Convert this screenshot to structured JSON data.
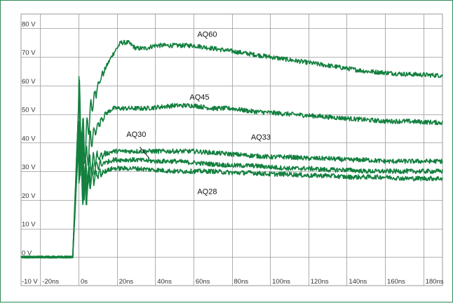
{
  "chart_data": {
    "type": "line",
    "title": "",
    "xlabel": "",
    "ylabel": "",
    "x_unit": "ns",
    "y_unit": "V",
    "xlim": [
      -30,
      190
    ],
    "ylim": [
      -10,
      85
    ],
    "grid": true,
    "colors": {
      "frame": "#2e8b57",
      "trace": "#13803f",
      "grid": "#9a9a9a"
    },
    "y_tick_values": [
      -10,
      0,
      10,
      20,
      30,
      40,
      50,
      60,
      70,
      80
    ],
    "y_tick_labels": [
      "-10 V",
      "0 V",
      "10 V",
      "20 V",
      "30 V",
      "40 V",
      "50 V",
      "60 V",
      "70 V",
      "80 V"
    ],
    "x_tick_values": [
      -20,
      0,
      20,
      40,
      60,
      80,
      100,
      120,
      140,
      160,
      180
    ],
    "x_tick_labels": [
      "-20ns",
      "0s",
      "20ns",
      "40ns",
      "60ns",
      "80ns",
      "100ns",
      "120ns",
      "140ns",
      "160ns",
      "180ns"
    ],
    "series": [
      {
        "name": "AQ60",
        "label_at": [
          62,
          77
        ],
        "points": [
          [
            -30,
            0
          ],
          [
            -3,
            0
          ],
          [
            0,
            52
          ],
          [
            3,
            38
          ],
          [
            6,
            50
          ],
          [
            10,
            60
          ],
          [
            14,
            66
          ],
          [
            18,
            71
          ],
          [
            22,
            75
          ],
          [
            26,
            75
          ],
          [
            30,
            73
          ],
          [
            35,
            73
          ],
          [
            40,
            74
          ],
          [
            50,
            74
          ],
          [
            60,
            74
          ],
          [
            70,
            73
          ],
          [
            80,
            72
          ],
          [
            90,
            71
          ],
          [
            100,
            70
          ],
          [
            110,
            69
          ],
          [
            120,
            68
          ],
          [
            130,
            67
          ],
          [
            140,
            66
          ],
          [
            150,
            65
          ],
          [
            160,
            64.5
          ],
          [
            170,
            64
          ],
          [
            190,
            63.5
          ]
        ]
      },
      {
        "name": "AQ45",
        "label_at": [
          58,
          55
        ],
        "points": [
          [
            -30,
            0
          ],
          [
            -3,
            0
          ],
          [
            0,
            52
          ],
          [
            3,
            30
          ],
          [
            6,
            40
          ],
          [
            10,
            46
          ],
          [
            14,
            50
          ],
          [
            18,
            52
          ],
          [
            25,
            52
          ],
          [
            35,
            52
          ],
          [
            50,
            53
          ],
          [
            60,
            53
          ],
          [
            70,
            52
          ],
          [
            80,
            52
          ],
          [
            90,
            51
          ],
          [
            100,
            50.5
          ],
          [
            110,
            50
          ],
          [
            120,
            49.5
          ],
          [
            130,
            49
          ],
          [
            140,
            48.5
          ],
          [
            150,
            48
          ],
          [
            160,
            47.5
          ],
          [
            170,
            47.5
          ],
          [
            190,
            47
          ]
        ]
      },
      {
        "name": "AQ33",
        "label_at": [
          90,
          41
        ],
        "points": [
          [
            -30,
            0
          ],
          [
            -3,
            0
          ],
          [
            0,
            45
          ],
          [
            3,
            26
          ],
          [
            6,
            32
          ],
          [
            10,
            35
          ],
          [
            14,
            36
          ],
          [
            18,
            37
          ],
          [
            30,
            37
          ],
          [
            40,
            37
          ],
          [
            50,
            37
          ],
          [
            60,
            37
          ],
          [
            70,
            36.5
          ],
          [
            80,
            36
          ],
          [
            90,
            35.5
          ],
          [
            100,
            35
          ],
          [
            110,
            35
          ],
          [
            120,
            34.5
          ],
          [
            130,
            34.5
          ],
          [
            140,
            34
          ],
          [
            150,
            34
          ],
          [
            160,
            33.5
          ],
          [
            170,
            33.5
          ],
          [
            190,
            33.5
          ]
        ]
      },
      {
        "name": "AQ30",
        "label_at": [
          25,
          42
        ],
        "points": [
          [
            -30,
            0
          ],
          [
            -3,
            0
          ],
          [
            0,
            42
          ],
          [
            3,
            24
          ],
          [
            6,
            29
          ],
          [
            10,
            32
          ],
          [
            14,
            33
          ],
          [
            18,
            34
          ],
          [
            30,
            34
          ],
          [
            40,
            33.5
          ],
          [
            50,
            33.5
          ],
          [
            60,
            33
          ],
          [
            70,
            32.5
          ],
          [
            80,
            32
          ],
          [
            90,
            32
          ],
          [
            100,
            31.5
          ],
          [
            110,
            31
          ],
          [
            120,
            31
          ],
          [
            130,
            30.5
          ],
          [
            140,
            30.5
          ],
          [
            150,
            30
          ],
          [
            160,
            30
          ],
          [
            170,
            30
          ],
          [
            190,
            30
          ]
        ]
      },
      {
        "name": "AQ28",
        "label_at": [
          62,
          22
        ],
        "points": [
          [
            -30,
            0
          ],
          [
            -3,
            0
          ],
          [
            0,
            40
          ],
          [
            3,
            22
          ],
          [
            6,
            27
          ],
          [
            10,
            29
          ],
          [
            14,
            30
          ],
          [
            18,
            31
          ],
          [
            30,
            31
          ],
          [
            40,
            30.5
          ],
          [
            50,
            30
          ],
          [
            60,
            30
          ],
          [
            70,
            30
          ],
          [
            80,
            29.5
          ],
          [
            90,
            29.5
          ],
          [
            100,
            29
          ],
          [
            110,
            29
          ],
          [
            120,
            28.5
          ],
          [
            130,
            28.5
          ],
          [
            140,
            28
          ],
          [
            150,
            28
          ],
          [
            160,
            28
          ],
          [
            170,
            27.5
          ],
          [
            190,
            27.5
          ]
        ]
      }
    ],
    "annotations": [
      {
        "text": "AQ30",
        "pointer_from": [
          32,
          38.5
        ],
        "pointer_to": [
          37,
          34.5
        ]
      }
    ]
  }
}
